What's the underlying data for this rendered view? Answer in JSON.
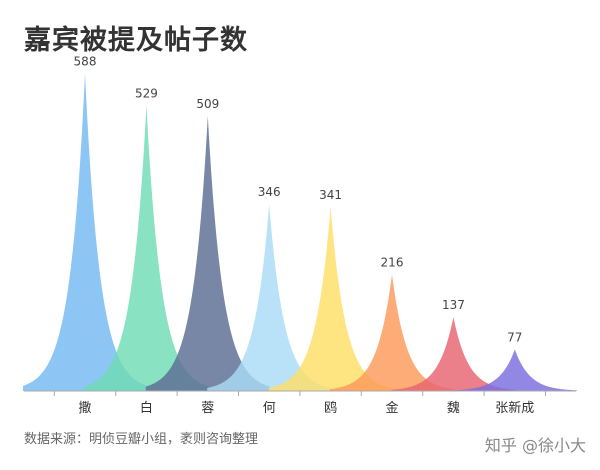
{
  "chart_data": {
    "type": "area",
    "title": "嘉宾被提及帖子数",
    "categories": [
      "撒",
      "白",
      "蓉",
      "何",
      "鸥",
      "金",
      "魏",
      "张新成"
    ],
    "values": [
      588,
      529,
      509,
      346,
      341,
      216,
      137,
      77
    ],
    "colors": [
      "#74b9f2",
      "#6fdcb4",
      "#5b6c94",
      "#a9dcf7",
      "#ffde66",
      "#fd9a5a",
      "#e76470",
      "#7b6de0"
    ],
    "ylim": [
      0,
      600
    ],
    "grid": false,
    "legend": "none"
  },
  "footer": {
    "source": "数据来源：明侦豆瓣小组，袤则咨询整理",
    "watermark": "知乎 @徐小大"
  }
}
